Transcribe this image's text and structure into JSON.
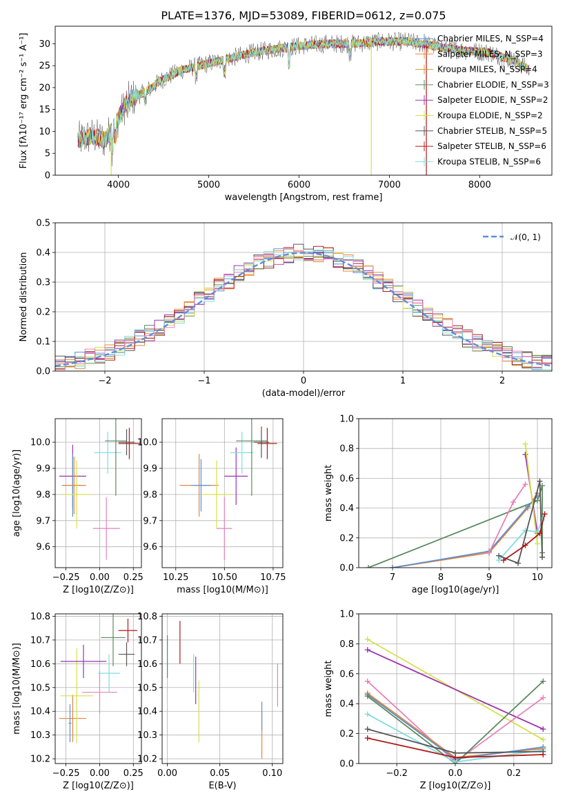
{
  "colors": {
    "chabrier_miles": "#5b8fcf",
    "salpeter_miles": "#e8853a",
    "kroupa_miles": "#d99030",
    "chabrier_elodie": "#5a8a5e",
    "salpeter_elodie": "#9b30b0",
    "kroupa_elodie": "#d4e04a",
    "chabrier_stelib": "#555555",
    "salpeter_stelib": "#b01818",
    "kroupa_stelib": "#7fdde0",
    "extra_pink": "#e87fb8",
    "normal": "#5b8fdc",
    "grid": "#b0b0b0"
  },
  "chart_data": [
    {
      "id": "spectrum",
      "type": "line",
      "title": "PLATE=1376, MJD=53089, FIBERID=0612, z=0.075",
      "xlabel": "wavelength [Angstrom, rest frame]",
      "ylabel": "Flux [fλ10⁻¹⁷ erg cm⁻² s⁻¹ A⁻¹]",
      "xlim": [
        3300,
        8800
      ],
      "ylim": [
        0,
        34
      ],
      "xticks": [
        4000,
        5000,
        6000,
        7000,
        8000
      ],
      "yticks": [
        0,
        5,
        10,
        15,
        20,
        25,
        30
      ],
      "grid": false,
      "legend_position": "right",
      "legend": [
        {
          "label": "Chabrier MILES, N_SSP=4",
          "color_key": "chabrier_miles"
        },
        {
          "label": "Salpeter MILES, N_SSP=3",
          "color_key": "salpeter_miles"
        },
        {
          "label": "Kroupa MILES, N_SSP=4",
          "color_key": "kroupa_miles"
        },
        {
          "label": "Chabrier ELODIE, N_SSP=3",
          "color_key": "chabrier_elodie"
        },
        {
          "label": "Salpeter ELODIE, N_SSP=2",
          "color_key": "salpeter_elodie"
        },
        {
          "label": "Kroupa ELODIE, N_SSP=2",
          "color_key": "kroupa_elodie"
        },
        {
          "label": "Chabrier STELIB, N_SSP=5",
          "color_key": "chabrier_stelib"
        },
        {
          "label": "Salpeter STELIB, N_SSP=6",
          "color_key": "salpeter_stelib"
        },
        {
          "label": "Kroupa STELIB, N_SSP=6",
          "color_key": "kroupa_stelib"
        }
      ],
      "continuum_points": [
        [
          3550,
          8
        ],
        [
          3700,
          9
        ],
        [
          3850,
          8
        ],
        [
          3950,
          11
        ],
        [
          4100,
          17
        ],
        [
          4300,
          19
        ],
        [
          4500,
          22
        ],
        [
          4700,
          24
        ],
        [
          4900,
          25
        ],
        [
          5100,
          26
        ],
        [
          5300,
          27
        ],
        [
          5500,
          28
        ],
        [
          5800,
          29
        ],
        [
          6000,
          29.5
        ],
        [
          6300,
          30
        ],
        [
          6600,
          30
        ],
        [
          6900,
          30.5
        ],
        [
          7200,
          30.5
        ],
        [
          7500,
          29.5
        ],
        [
          7800,
          28.5
        ],
        [
          8100,
          28
        ],
        [
          8400,
          26
        ],
        [
          8550,
          24
        ]
      ],
      "drops": [
        {
          "x": 3920,
          "color_key": "kroupa_elodie"
        },
        {
          "x": 6800,
          "color_key": "kroupa_elodie"
        },
        {
          "x": 7410,
          "color_key": "salpeter_stelib"
        }
      ]
    },
    {
      "id": "residuals",
      "type": "bar",
      "xlabel": "(data-model)/error",
      "ylabel": "Normed distribution",
      "xlim": [
        -2.5,
        2.5
      ],
      "ylim": [
        0,
        0.5
      ],
      "xticks": [
        -2,
        -1,
        0,
        1,
        2
      ],
      "xticklabels": [
        "−2",
        "−1",
        "0",
        "1",
        "2"
      ],
      "yticks": [
        0,
        0.1,
        0.2,
        0.3,
        0.4,
        0.5
      ],
      "yticklabels": [
        "0.0",
        "0.1",
        "0.2",
        "0.3",
        "0.4",
        "0.5"
      ],
      "grid": true,
      "legend": [
        {
          "label": "𝒩(0, 1)",
          "color_key": "normal"
        }
      ],
      "legend_position": "top-right",
      "bin_width": 0.1
    },
    {
      "id": "age_vs_Z",
      "type": "scatter",
      "xlabel": "Z [log10(Z/Z⊙)]",
      "ylabel": "age [log10(age/yr)]",
      "xlim": [
        -0.33,
        0.31
      ],
      "ylim": [
        9.52,
        10.09
      ],
      "xticks": [
        -0.25,
        0.0,
        0.25
      ],
      "xticklabels": [
        "−0.25",
        "0.00",
        "0.25"
      ],
      "yticks": [
        9.6,
        9.7,
        9.8,
        9.9,
        10.0
      ],
      "yticklabels": [
        "9.6",
        "9.7",
        "9.8",
        "9.9",
        "10.0"
      ],
      "grid": true,
      "errorbars": [
        {
          "x": -0.2,
          "xerr": 0.1,
          "y": 9.87,
          "yerr": 0.12,
          "color_key": "salpeter_elodie"
        },
        {
          "x": -0.2,
          "xerr": 0.08,
          "y": 9.835,
          "yerr": 0.12,
          "color_key": "chabrier_miles"
        },
        {
          "x": -0.19,
          "xerr": 0.09,
          "y": 9.835,
          "yerr": 0.11,
          "color_key": "salpeter_miles"
        },
        {
          "x": -0.17,
          "xerr": 0.11,
          "y": 9.8,
          "yerr": 0.13,
          "color_key": "kroupa_elodie"
        },
        {
          "x": 0.05,
          "xerr": 0.1,
          "y": 9.67,
          "yerr": 0.12,
          "color_key": "extra_pink"
        },
        {
          "x": 0.06,
          "xerr": 0.1,
          "y": 9.96,
          "yerr": 0.08,
          "color_key": "kroupa_stelib"
        },
        {
          "x": 0.12,
          "xerr": 0.08,
          "y": 10.005,
          "yerr": 0.21,
          "color_key": "chabrier_elodie"
        },
        {
          "x": 0.2,
          "xerr": 0.06,
          "y": 10.0,
          "yerr": 0.05,
          "color_key": "chabrier_stelib"
        },
        {
          "x": 0.22,
          "xerr": 0.08,
          "y": 9.995,
          "yerr": 0.06,
          "color_key": "salpeter_stelib"
        }
      ]
    },
    {
      "id": "age_vs_mass",
      "type": "scatter",
      "xlabel": "mass [log10(M/M⊙)]",
      "ylabel": "",
      "xlim": [
        10.18,
        10.8
      ],
      "ylim": [
        9.52,
        10.09
      ],
      "xticks": [
        10.25,
        10.5,
        10.75
      ],
      "xticklabels": [
        "10.25",
        "10.50",
        "10.75"
      ],
      "yticks": [
        9.6,
        9.7,
        9.8,
        9.9,
        10.0
      ],
      "yticklabels": [
        "9.6",
        "9.7",
        "9.8",
        "9.9",
        "10.0"
      ],
      "grid": true,
      "errorbars": [
        {
          "x": 10.37,
          "xerr": 0.1,
          "y": 9.835,
          "yerr": 0.12,
          "color_key": "salpeter_miles"
        },
        {
          "x": 10.38,
          "xerr": 0.05,
          "y": 9.835,
          "yerr": 0.1,
          "color_key": "chabrier_miles"
        },
        {
          "x": 10.46,
          "xerr": 0.08,
          "y": 9.8,
          "yerr": 0.13,
          "color_key": "kroupa_elodie"
        },
        {
          "x": 10.5,
          "xerr": 0.04,
          "y": 9.67,
          "yerr": 0.12,
          "color_key": "extra_pink"
        },
        {
          "x": 10.56,
          "xerr": 0.06,
          "y": 9.87,
          "yerr": 0.11,
          "color_key": "salpeter_elodie"
        },
        {
          "x": 10.59,
          "xerr": 0.06,
          "y": 9.96,
          "yerr": 0.08,
          "color_key": "kroupa_stelib"
        },
        {
          "x": 10.64,
          "xerr": 0.08,
          "y": 10.005,
          "yerr": 0.21,
          "color_key": "chabrier_elodie"
        },
        {
          "x": 10.69,
          "xerr": 0.04,
          "y": 10.0,
          "yerr": 0.06,
          "color_key": "chabrier_stelib"
        },
        {
          "x": 10.72,
          "xerr": 0.05,
          "y": 9.995,
          "yerr": 0.06,
          "color_key": "salpeter_stelib"
        }
      ]
    },
    {
      "id": "weight_vs_age",
      "type": "line",
      "xlabel": "age [log10(age/yr)]",
      "ylabel": "mass weight",
      "xlim": [
        6.3,
        10.3
      ],
      "ylim": [
        0,
        1
      ],
      "xticks": [
        7,
        8,
        9,
        10
      ],
      "yticks": [
        0,
        0.2,
        0.4,
        0.6,
        0.8,
        1.0
      ],
      "yticklabels": [
        "0.0",
        "0.2",
        "0.4",
        "0.6",
        "0.8",
        "1.0"
      ],
      "grid": true,
      "series": [
        {
          "color_key": "chabrier_elodie",
          "points": [
            [
              6.5,
              0.0
            ],
            [
              10.0,
              0.45
            ],
            [
              10.1,
              0.55
            ],
            [
              10.1,
              0.1
            ]
          ]
        },
        {
          "color_key": "salpeter_miles",
          "points": [
            [
              7.0,
              0.0
            ],
            [
              9.0,
              0.1
            ],
            [
              9.8,
              0.4
            ],
            [
              10.0,
              0.5
            ]
          ]
        },
        {
          "color_key": "chabrier_miles",
          "points": [
            [
              7.0,
              0.0
            ],
            [
              9.0,
              0.11
            ],
            [
              9.8,
              0.41
            ],
            [
              10.0,
              0.48
            ]
          ]
        },
        {
          "color_key": "extra_pink",
          "points": [
            [
              9.0,
              0.1
            ],
            [
              9.5,
              0.44
            ],
            [
              9.75,
              0.56
            ]
          ]
        },
        {
          "color_key": "salpeter_elodie",
          "points": [
            [
              9.75,
              0.76
            ],
            [
              10.0,
              0.23
            ]
          ]
        },
        {
          "color_key": "kroupa_elodie",
          "points": [
            [
              9.75,
              0.83
            ],
            [
              10.0,
              0.16
            ]
          ]
        },
        {
          "color_key": "kroupa_stelib",
          "points": [
            [
              9.2,
              0.05
            ],
            [
              9.75,
              0.25
            ],
            [
              10.0,
              0.24
            ],
            [
              10.1,
              0.32
            ]
          ]
        },
        {
          "color_key": "chabrier_stelib",
          "points": [
            [
              9.2,
              0.08
            ],
            [
              9.6,
              0.03
            ],
            [
              10.05,
              0.58
            ],
            [
              10.1,
              0.07
            ]
          ]
        },
        {
          "color_key": "salpeter_stelib",
          "points": [
            [
              9.3,
              0.05
            ],
            [
              9.75,
              0.15
            ],
            [
              10.05,
              0.23
            ],
            [
              10.15,
              0.36
            ]
          ]
        }
      ]
    },
    {
      "id": "mass_vs_Z",
      "type": "scatter",
      "xlabel": "Z [log10(Z/Z⊙)]",
      "ylabel": "mass [log10(M/M⊙)]",
      "xlim": [
        -0.33,
        0.31
      ],
      "ylim": [
        10.18,
        10.81
      ],
      "xticks": [
        -0.25,
        0.0,
        0.25
      ],
      "xticklabels": [
        "−0.25",
        "0.00",
        "0.25"
      ],
      "yticks": [
        10.2,
        10.3,
        10.4,
        10.5,
        10.6,
        10.7,
        10.8
      ],
      "yticklabels": [
        "10.2",
        "10.3",
        "10.4",
        "10.5",
        "10.6",
        "10.7",
        "10.8"
      ],
      "grid": true,
      "errorbars": [
        {
          "x": -0.2,
          "xerr": 0.1,
          "y": 10.37,
          "yerr": 0.1,
          "color_key": "salpeter_miles"
        },
        {
          "x": -0.22,
          "xerr": 0.01,
          "y": 10.35,
          "yerr": 0.08,
          "color_key": "chabrier_miles"
        },
        {
          "x": -0.17,
          "xerr": 0.12,
          "y": 10.465,
          "yerr": 0.2,
          "color_key": "kroupa_elodie"
        },
        {
          "x": -0.12,
          "xerr": 0.17,
          "y": 10.61,
          "yerr": 0.07,
          "color_key": "salpeter_elodie"
        },
        {
          "x": 0.0,
          "xerr": 0.13,
          "y": 10.48,
          "yerr": 0.09,
          "color_key": "extra_pink"
        },
        {
          "x": 0.07,
          "xerr": 0.08,
          "y": 10.56,
          "yerr": 0.08,
          "color_key": "kroupa_stelib"
        },
        {
          "x": 0.1,
          "xerr": 0.09,
          "y": 10.71,
          "yerr": 0.12,
          "color_key": "chabrier_elodie"
        },
        {
          "x": 0.2,
          "xerr": 0.06,
          "y": 10.64,
          "yerr": 0.05,
          "color_key": "chabrier_stelib"
        },
        {
          "x": 0.21,
          "xerr": 0.07,
          "y": 10.74,
          "yerr": 0.05,
          "color_key": "salpeter_stelib"
        }
      ]
    },
    {
      "id": "mass_vs_ebv",
      "type": "scatter",
      "xlabel": "E(B-V)",
      "ylabel": "",
      "xlim": [
        -0.005,
        0.11
      ],
      "ylim": [
        10.18,
        10.81
      ],
      "xticks": [
        0.0,
        0.05,
        0.1
      ],
      "xticklabels": [
        "0.00",
        "0.05",
        "0.10"
      ],
      "yticks": [
        10.2,
        10.3,
        10.4,
        10.5,
        10.6,
        10.7,
        10.8
      ],
      "yticklabels": [
        "10.2",
        "10.3",
        "10.4",
        "10.5",
        "10.6",
        "10.7",
        "10.8"
      ],
      "grid": true,
      "errorbars": [
        {
          "x": 0.0,
          "xerr": 0,
          "y": 10.63,
          "yerr": 0.09,
          "color_key": "chabrier_elodie"
        },
        {
          "x": 0.012,
          "xerr": 0,
          "y": 10.69,
          "yerr": 0.09,
          "color_key": "salpeter_stelib"
        },
        {
          "x": 0.025,
          "xerr": 0,
          "y": 10.56,
          "yerr": 0.08,
          "color_key": "kroupa_stelib"
        },
        {
          "x": 0.027,
          "xerr": 0,
          "y": 10.53,
          "yerr": 0.1,
          "color_key": "salpeter_elodie"
        },
        {
          "x": 0.03,
          "xerr": 0,
          "y": 10.4,
          "yerr": 0.13,
          "color_key": "kroupa_elodie"
        },
        {
          "x": 0.09,
          "xerr": 0,
          "y": 10.3,
          "yerr": 0.1,
          "color_key": "salpeter_miles"
        },
        {
          "x": 0.09,
          "xerr": 0,
          "y": 10.38,
          "yerr": 0.06,
          "color_key": "chabrier_miles"
        },
        {
          "x": 0.105,
          "xerr": 0,
          "y": 10.51,
          "yerr": 0.09,
          "color_key": "extra_pink"
        }
      ]
    },
    {
      "id": "weight_vs_Z",
      "type": "line",
      "xlabel": "Z [log10(Z/Z⊙)]",
      "ylabel": "mass weight",
      "xlim": [
        -0.33,
        0.33
      ],
      "ylim": [
        0,
        1
      ],
      "xticks": [
        -0.2,
        0.0,
        0.2
      ],
      "xticklabels": [
        "−0.2",
        "0.0",
        "0.2"
      ],
      "yticks": [
        0,
        0.2,
        0.4,
        0.6,
        0.8,
        1.0
      ],
      "yticklabels": [
        "0.0",
        "0.2",
        "0.4",
        "0.6",
        "0.8",
        "1.0"
      ],
      "grid": true,
      "series": [
        {
          "color_key": "kroupa_elodie",
          "points": [
            [
              -0.3,
              0.83
            ],
            [
              0.3,
              0.16
            ]
          ]
        },
        {
          "color_key": "salpeter_elodie",
          "points": [
            [
              -0.3,
              0.76
            ],
            [
              0.3,
              0.23
            ]
          ]
        },
        {
          "color_key": "extra_pink",
          "points": [
            [
              -0.3,
              0.55
            ],
            [
              0.0,
              0.01
            ],
            [
              0.3,
              0.44
            ]
          ]
        },
        {
          "color_key": "salpeter_miles",
          "points": [
            [
              -0.3,
              0.47
            ],
            [
              0.0,
              0.04
            ],
            [
              0.3,
              0.1
            ]
          ]
        },
        {
          "color_key": "chabrier_miles",
          "points": [
            [
              -0.3,
              0.46
            ],
            [
              0.0,
              0.03
            ],
            [
              0.3,
              0.11
            ]
          ]
        },
        {
          "color_key": "chabrier_elodie",
          "points": [
            [
              -0.3,
              0.45
            ],
            [
              0.0,
              0.0
            ],
            [
              0.3,
              0.55
            ]
          ]
        },
        {
          "color_key": "kroupa_stelib",
          "points": [
            [
              -0.3,
              0.33
            ],
            [
              0.0,
              0.01
            ],
            [
              0.3,
              0.09
            ]
          ]
        },
        {
          "color_key": "chabrier_stelib",
          "points": [
            [
              -0.3,
              0.23
            ],
            [
              0.0,
              0.07
            ],
            [
              0.3,
              0.08
            ]
          ]
        },
        {
          "color_key": "salpeter_stelib",
          "points": [
            [
              -0.3,
              0.17
            ],
            [
              0.0,
              0.04
            ],
            [
              0.3,
              0.06
            ]
          ]
        }
      ]
    }
  ]
}
